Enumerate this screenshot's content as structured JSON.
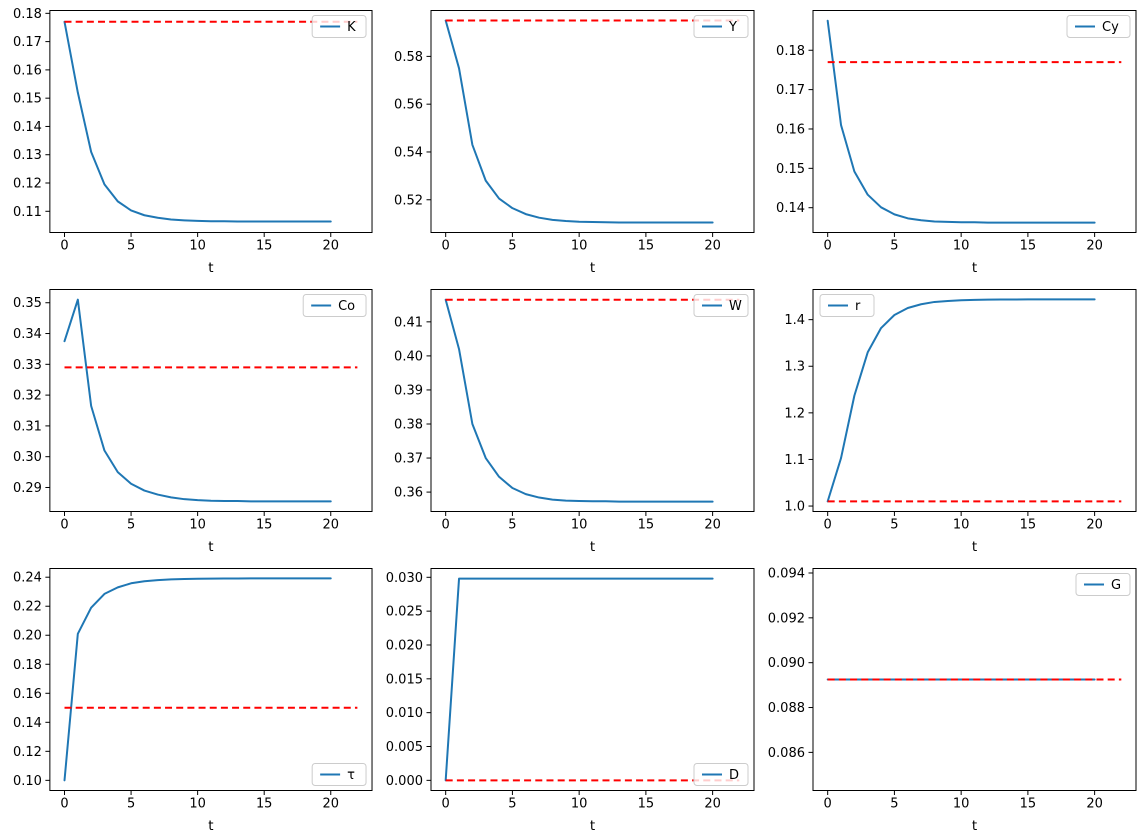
{
  "figure": {
    "background": "#ffffff",
    "rows": 3,
    "cols": 3
  },
  "chart_data": {
    "type": "line",
    "x": [
      0,
      1,
      2,
      3,
      4,
      5,
      6,
      7,
      8,
      9,
      10,
      11,
      12,
      13,
      14,
      15,
      16,
      17,
      18,
      19,
      20
    ],
    "xlabel": "t",
    "xticks": [
      0,
      5,
      10,
      15,
      20
    ],
    "xlim": [
      -1.1,
      23.1
    ],
    "steady_state_x_span": [
      0,
      22
    ],
    "legend_border_color": "#cccccc",
    "colors": {
      "series": "#1f77b4",
      "steady_state": "#ff0000"
    },
    "line_styles": {
      "series": "solid",
      "steady_state": "dashed"
    },
    "plots": [
      {
        "legend": "K",
        "legend_loc": "upper-right",
        "values": [
          0.177,
          0.152,
          0.131,
          0.1195,
          0.1135,
          0.1103,
          0.1086,
          0.1077,
          0.1071,
          0.1068,
          0.1066,
          0.1065,
          0.1065,
          0.1064,
          0.1064,
          0.1064,
          0.1064,
          0.1064,
          0.1064,
          0.1064,
          0.1064
        ],
        "steady_state": 0.177,
        "yticks": [
          0.11,
          0.12,
          0.13,
          0.14,
          0.15,
          0.16,
          0.17,
          0.18
        ],
        "ylim": [
          0.1025,
          0.181
        ],
        "ytick_decimals": 2
      },
      {
        "legend": "Y",
        "legend_loc": "upper-right",
        "values": [
          0.595,
          0.575,
          0.543,
          0.528,
          0.5205,
          0.5165,
          0.514,
          0.5125,
          0.5116,
          0.5111,
          0.5108,
          0.5107,
          0.5106,
          0.5105,
          0.5105,
          0.5105,
          0.5105,
          0.5105,
          0.5105,
          0.5105,
          0.5105
        ],
        "steady_state": 0.595,
        "yticks": [
          0.52,
          0.54,
          0.56,
          0.58
        ],
        "ylim": [
          0.5063,
          0.5992
        ],
        "ytick_decimals": 2
      },
      {
        "legend": "Cy",
        "legend_loc": "upper-right",
        "values": [
          0.1875,
          0.161,
          0.1492,
          0.1433,
          0.1401,
          0.1383,
          0.1373,
          0.1368,
          0.1365,
          0.1364,
          0.1363,
          0.1363,
          0.1362,
          0.1362,
          0.1362,
          0.1362,
          0.1362,
          0.1362,
          0.1362,
          0.1362,
          0.1362
        ],
        "steady_state": 0.177,
        "yticks": [
          0.14,
          0.15,
          0.16,
          0.17,
          0.18
        ],
        "ylim": [
          0.1337,
          0.1901
        ],
        "ytick_decimals": 2
      },
      {
        "legend": "Co",
        "legend_loc": "upper-right",
        "values": [
          0.3375,
          0.351,
          0.3165,
          0.302,
          0.295,
          0.2912,
          0.289,
          0.2877,
          0.2868,
          0.2862,
          0.2859,
          0.2857,
          0.2856,
          0.2856,
          0.2855,
          0.2855,
          0.2855,
          0.2855,
          0.2855,
          0.2855,
          0.2855
        ],
        "steady_state": 0.329,
        "yticks": [
          0.29,
          0.3,
          0.31,
          0.32,
          0.33,
          0.34,
          0.35
        ],
        "ylim": [
          0.2822,
          0.3543
        ],
        "ytick_decimals": 2
      },
      {
        "legend": "W",
        "legend_loc": "upper-right",
        "values": [
          0.4165,
          0.402,
          0.38,
          0.37,
          0.3645,
          0.3612,
          0.3594,
          0.3584,
          0.3578,
          0.3575,
          0.3574,
          0.3573,
          0.3573,
          0.3572,
          0.3572,
          0.3572,
          0.3572,
          0.3572,
          0.3572,
          0.3572,
          0.3572
        ],
        "steady_state": 0.4165,
        "yticks": [
          0.36,
          0.37,
          0.38,
          0.39,
          0.4,
          0.41
        ],
        "ylim": [
          0.3543,
          0.4195
        ],
        "ytick_decimals": 2
      },
      {
        "legend": "r",
        "legend_loc": "upper-left",
        "values": [
          1.01,
          1.103,
          1.237,
          1.33,
          1.382,
          1.41,
          1.425,
          1.433,
          1.438,
          1.44,
          1.4415,
          1.4425,
          1.443,
          1.4432,
          1.4433,
          1.4434,
          1.4434,
          1.4434,
          1.4434,
          1.4434,
          1.4434
        ],
        "steady_state": 1.01,
        "yticks": [
          1.0,
          1.1,
          1.2,
          1.3,
          1.4
        ],
        "ylim": [
          0.9883,
          1.4647
        ],
        "ytick_decimals": 1
      },
      {
        "legend": "τ",
        "legend_loc": "lower-right",
        "values": [
          0.1,
          0.201,
          0.219,
          0.2285,
          0.233,
          0.2358,
          0.2372,
          0.238,
          0.2385,
          0.2388,
          0.2389,
          0.239,
          0.2391,
          0.2391,
          0.2392,
          0.2392,
          0.2392,
          0.2392,
          0.2392,
          0.2392,
          0.2392
        ],
        "steady_state": 0.15,
        "yticks": [
          0.1,
          0.12,
          0.14,
          0.16,
          0.18,
          0.2,
          0.22,
          0.24
        ],
        "ylim": [
          0.093,
          0.246
        ],
        "ytick_decimals": 2
      },
      {
        "legend": "D",
        "legend_loc": "lower-right",
        "values": [
          0.0,
          0.0298,
          0.0298,
          0.0298,
          0.0298,
          0.0298,
          0.0298,
          0.0298,
          0.0298,
          0.0298,
          0.0298,
          0.0298,
          0.0298,
          0.0298,
          0.0298,
          0.0298,
          0.0298,
          0.0298,
          0.0298,
          0.0298,
          0.0298
        ],
        "steady_state": 0.0,
        "yticks": [
          0.0,
          0.005,
          0.01,
          0.015,
          0.02,
          0.025,
          0.03
        ],
        "ylim": [
          -0.0015,
          0.0313
        ],
        "ytick_decimals": 3
      },
      {
        "legend": "G",
        "legend_loc": "upper-right",
        "values": [
          0.08925,
          0.08925,
          0.08925,
          0.08925,
          0.08925,
          0.08925,
          0.08925,
          0.08925,
          0.08925,
          0.08925,
          0.08925,
          0.08925,
          0.08925,
          0.08925,
          0.08925,
          0.08925,
          0.08925,
          0.08925,
          0.08925,
          0.08925,
          0.08925
        ],
        "steady_state": 0.08925,
        "yticks": [
          0.086,
          0.088,
          0.09,
          0.092,
          0.094
        ],
        "ylim": [
          0.0843,
          0.0942
        ],
        "ytick_decimals": 3
      }
    ]
  }
}
